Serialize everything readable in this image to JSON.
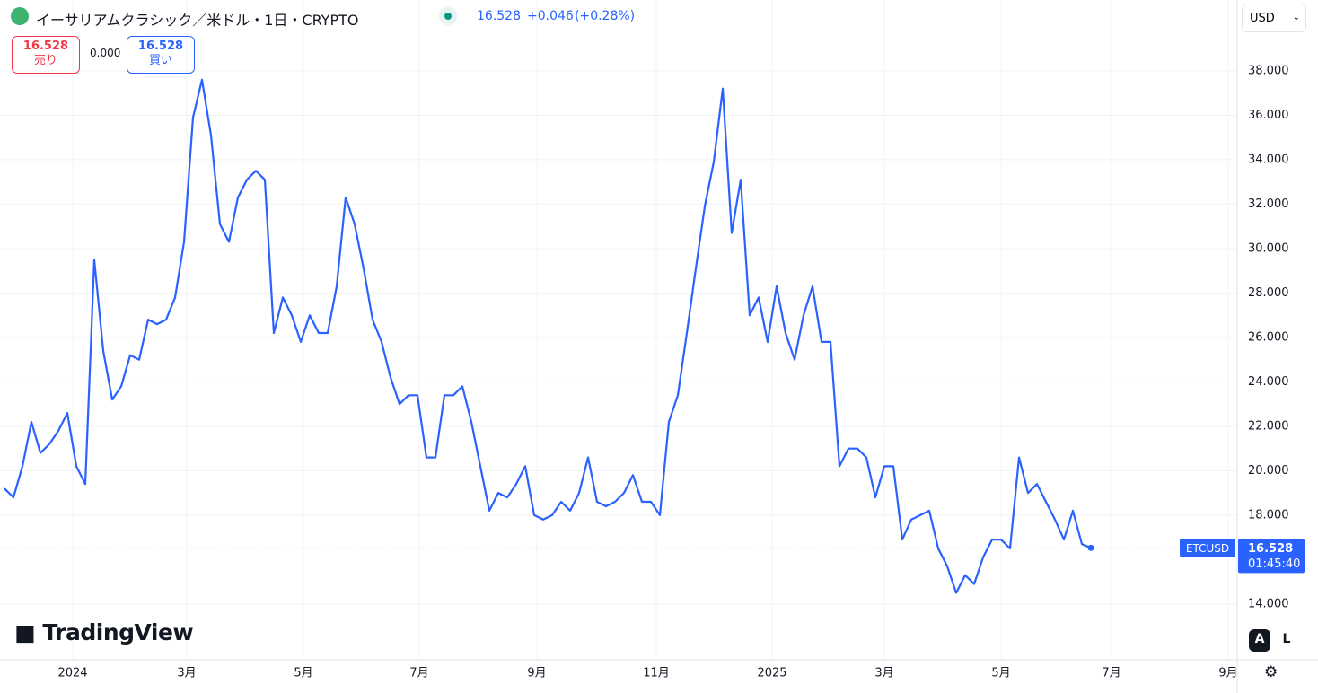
{
  "header": {
    "title": "イーサリアムクラシック／米ドル・1日・CRYPTO",
    "price": "16.528",
    "change": "+0.046",
    "change_pct": "(+0.28%)",
    "sell_price": "16.528",
    "sell_label": "売り",
    "spread": "0.000",
    "buy_price": "16.528",
    "buy_label": "買い",
    "currency": "USD"
  },
  "chart_data": {
    "type": "line",
    "color": "#2962ff",
    "grid": true,
    "symbol": "ETCUSD",
    "last_price_label": "16.528",
    "countdown": "01:45:40",
    "xlim": [
      -0.5,
      137.3
    ],
    "xticks": [
      {
        "value": 7.6,
        "label": "2024"
      },
      {
        "value": 20.3,
        "label": "3月"
      },
      {
        "value": 33.3,
        "label": "5月"
      },
      {
        "value": 46.2,
        "label": "7月"
      },
      {
        "value": 59.3,
        "label": "9月"
      },
      {
        "value": 72.6,
        "label": "11月"
      },
      {
        "value": 85.5,
        "label": "2025"
      },
      {
        "value": 98,
        "label": "3月"
      },
      {
        "value": 111,
        "label": "5月"
      },
      {
        "value": 123.3,
        "label": "7月"
      },
      {
        "value": 136.3,
        "label": "9月"
      }
    ],
    "ylim": [
      11.49,
      41.19
    ],
    "yticks": [
      {
        "value": 14,
        "label": "14.000"
      },
      {
        "value": 18,
        "label": "18.000"
      },
      {
        "value": 20,
        "label": "20.000"
      },
      {
        "value": 22,
        "label": "22.000"
      },
      {
        "value": 24,
        "label": "24.000"
      },
      {
        "value": 26,
        "label": "26.000"
      },
      {
        "value": 28,
        "label": "28.000"
      },
      {
        "value": 30,
        "label": "30.000"
      },
      {
        "value": 32,
        "label": "32.000"
      },
      {
        "value": 34,
        "label": "34.000"
      },
      {
        "value": 36,
        "label": "36.000"
      },
      {
        "value": 38,
        "label": "38.000"
      }
    ],
    "values": [
      19.2,
      18.8,
      20.2,
      22.2,
      20.8,
      21.2,
      21.8,
      22.6,
      20.2,
      19.4,
      29.5,
      25.4,
      23.2,
      23.8,
      25.2,
      25.0,
      26.8,
      26.6,
      26.8,
      27.8,
      30.3,
      35.9,
      37.6,
      35.1,
      31.1,
      30.3,
      32.3,
      33.1,
      33.5,
      33.1,
      26.2,
      27.8,
      27.0,
      25.8,
      27.0,
      26.2,
      26.2,
      28.3,
      32.3,
      31.1,
      29.1,
      26.8,
      25.8,
      24.2,
      23.0,
      23.4,
      23.4,
      20.6,
      20.6,
      23.4,
      23.4,
      23.8,
      22.2,
      20.2,
      18.2,
      19.0,
      18.8,
      19.4,
      20.2,
      18.0,
      17.8,
      18.0,
      18.6,
      18.2,
      19.0,
      20.6,
      18.6,
      18.4,
      18.6,
      19.0,
      19.8,
      18.6,
      18.6,
      18.0,
      22.2,
      23.4,
      26.2,
      29.1,
      31.9,
      33.9,
      37.2,
      30.7,
      33.1,
      27.0,
      27.8,
      25.8,
      28.3,
      26.2,
      25.0,
      27.0,
      28.3,
      25.8,
      25.8,
      20.2,
      21.0,
      21.0,
      20.6,
      18.8,
      20.2,
      20.2,
      16.9,
      17.8,
      18.0,
      18.2,
      16.5,
      15.7,
      14.5,
      15.3,
      14.9,
      16.1,
      16.9,
      16.9,
      16.5,
      20.6,
      19.0,
      19.4,
      18.6,
      17.8,
      16.9,
      18.2,
      16.7,
      16.528
    ]
  },
  "branding": {
    "logo": "TradingView",
    "auto_button": "A",
    "log_button": "L"
  }
}
